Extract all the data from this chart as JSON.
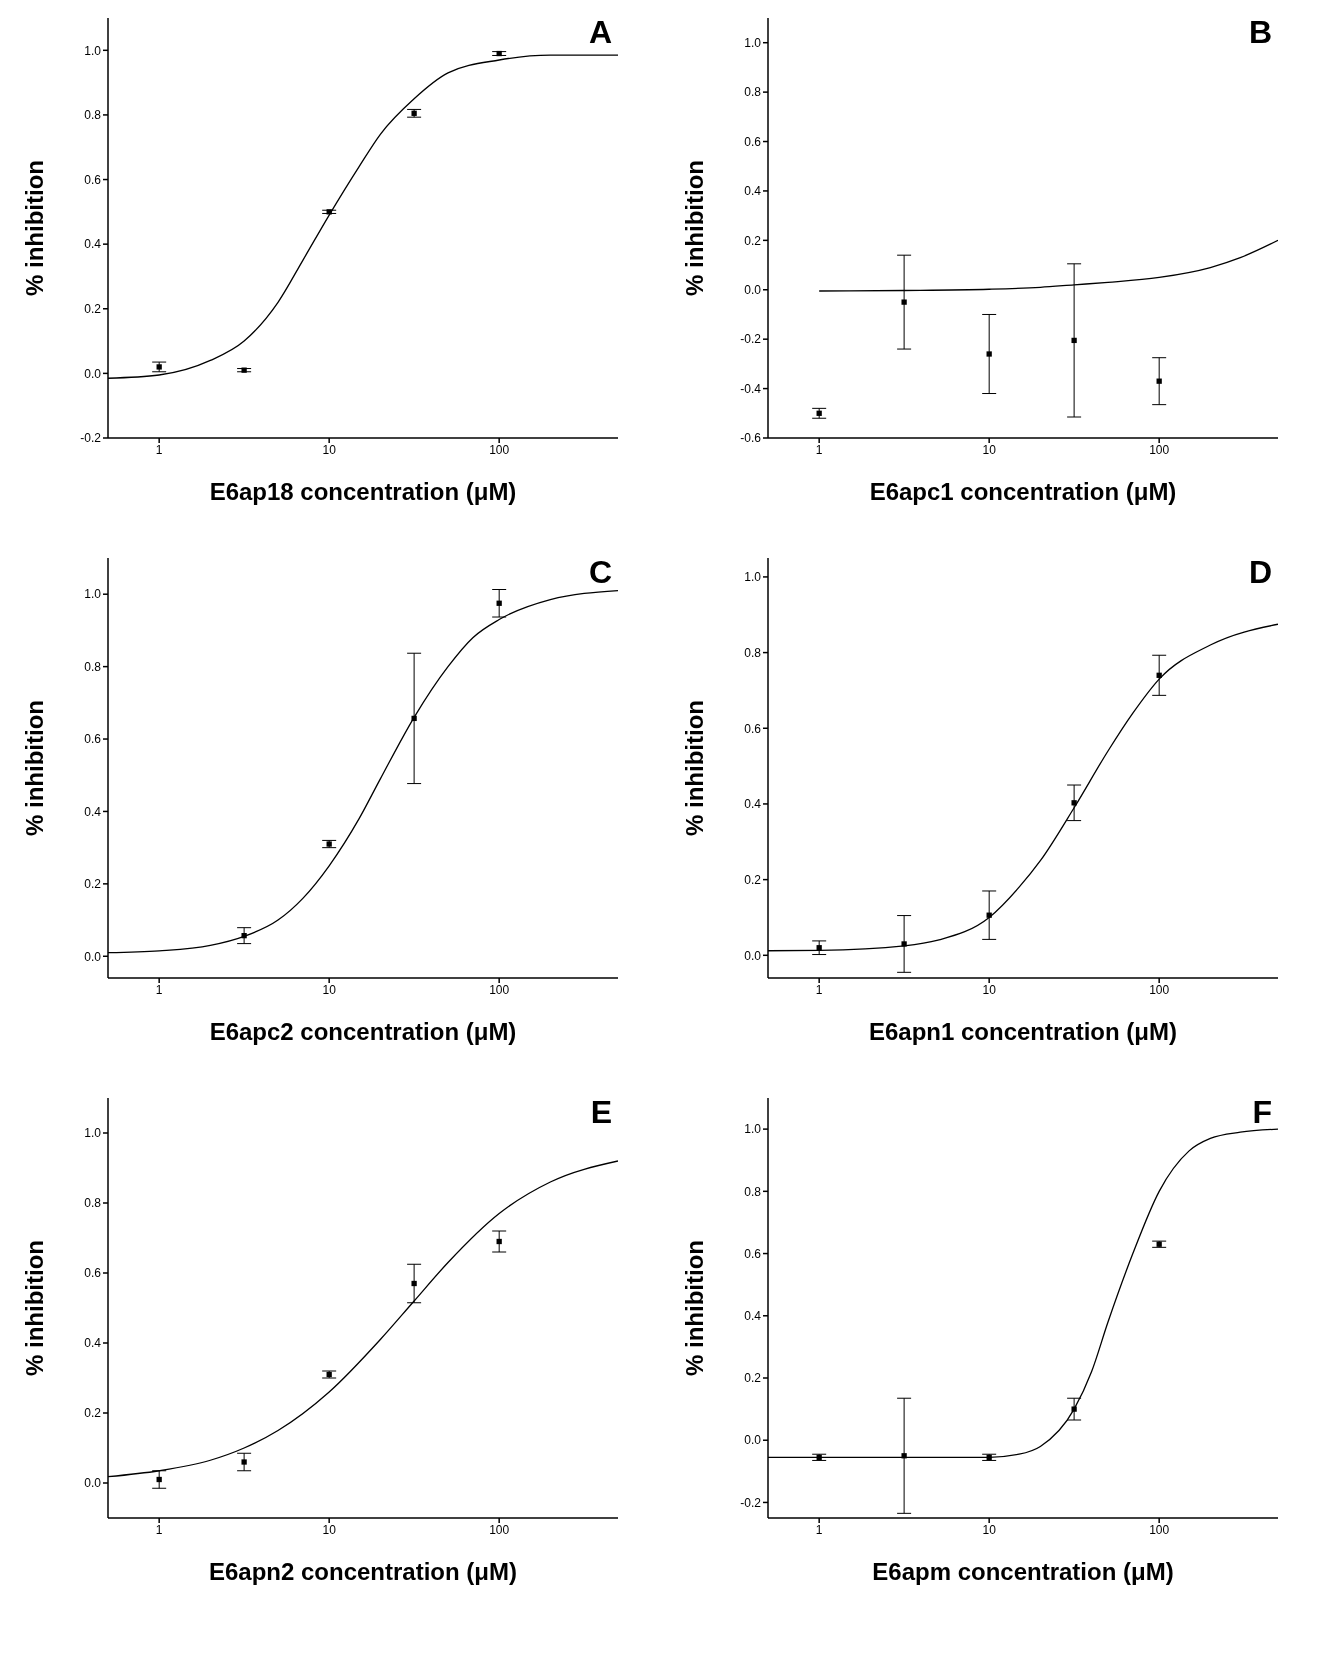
{
  "chart_data": [
    {
      "type": "scatter",
      "xlabel": "E6ap18  concentration (μM)",
      "ylabel": "% inhibition",
      "annotations": [
        "A"
      ],
      "log": "x",
      "xlim": [
        0.5,
        500
      ],
      "xticks": [
        1,
        10,
        100
      ],
      "ylim": [
        -0.2,
        1.1
      ],
      "yticks": [
        {
          "value": -0.2,
          "label": "-0.2"
        },
        {
          "value": 0,
          "label": "0.0"
        },
        {
          "value": 0.2,
          "label": "0.2"
        },
        {
          "value": 0.4,
          "label": "0.4"
        },
        {
          "value": 0.6,
          "label": "0.6"
        },
        {
          "value": 0.8,
          "label": "0.8"
        },
        {
          "value": 1,
          "label": "1.0"
        }
      ],
      "series": [
        {
          "marker": "square",
          "color": "#000000",
          "x": [
            1,
            3.16,
            10,
            31.6,
            100
          ],
          "values": [
            0.02,
            0.01,
            0.5,
            0.805,
            0.99
          ],
          "errors": [
            0.015,
            0.005,
            0.005,
            0.012,
            0.006
          ]
        },
        {
          "type": "line",
          "color": "#000000",
          "x": [
            0.5,
            1,
            2,
            3.16,
            5,
            7,
            10,
            15,
            20,
            31.6,
            50,
            100,
            200,
            500
          ],
          "values": [
            -0.015,
            -0.005,
            0.04,
            0.1,
            0.22,
            0.35,
            0.49,
            0.64,
            0.74,
            0.85,
            0.93,
            0.97,
            0.985,
            0.985
          ]
        }
      ]
    },
    {
      "type": "scatter",
      "xlabel": "E6apc1 concentration (μM)",
      "ylabel": "% inhibition",
      "annotations": [
        "B"
      ],
      "log": "x",
      "xlim": [
        0.5,
        500
      ],
      "xticks": [
        1,
        10,
        100
      ],
      "ylim": [
        -0.6,
        1.1
      ],
      "yticks": [
        {
          "value": -0.6,
          "label": "-0.6"
        },
        {
          "value": -0.4,
          "label": "-0.4"
        },
        {
          "value": -0.2,
          "label": "-0.2"
        },
        {
          "value": 0,
          "label": "0.0"
        },
        {
          "value": 0.2,
          "label": "0.2"
        },
        {
          "value": 0.4,
          "label": "0.4"
        },
        {
          "value": 0.6,
          "label": "0.6"
        },
        {
          "value": 0.8,
          "label": "0.8"
        },
        {
          "value": 1,
          "label": "1.0"
        }
      ],
      "series": [
        {
          "marker": "square",
          "color": "#000000",
          "x": [
            1,
            3.16,
            10,
            31.6,
            100
          ],
          "values": [
            -0.5,
            -0.05,
            -0.26,
            -0.205,
            -0.37
          ],
          "errors": [
            0.02,
            0.19,
            0.16,
            0.31,
            0.095
          ]
        },
        {
          "type": "line",
          "color": "#000000",
          "x": [
            1,
            3.16,
            10,
            20,
            31.6,
            50,
            100,
            200,
            300,
            500
          ],
          "values": [
            -0.005,
            -0.003,
            0.002,
            0.01,
            0.02,
            0.03,
            0.05,
            0.09,
            0.13,
            0.2
          ]
        }
      ]
    },
    {
      "type": "scatter",
      "xlabel": "E6apc2 concentration (μM)",
      "ylabel": "% inhibition",
      "annotations": [
        "C"
      ],
      "log": "x",
      "xlim": [
        0.5,
        500
      ],
      "xticks": [
        1,
        10,
        100
      ],
      "ylim": [
        -0.06,
        1.1
      ],
      "yticks": [
        {
          "value": 0,
          "label": "0.0"
        },
        {
          "value": 0.2,
          "label": "0.2"
        },
        {
          "value": 0.4,
          "label": "0.4"
        },
        {
          "value": 0.6,
          "label": "0.6"
        },
        {
          "value": 0.8,
          "label": "0.8"
        },
        {
          "value": 1,
          "label": "1.0"
        }
      ],
      "series": [
        {
          "marker": "square",
          "color": "#000000",
          "x": [
            3.16,
            10,
            31.6,
            100
          ],
          "values": [
            0.057,
            0.31,
            0.657,
            0.975
          ],
          "errors": [
            0.022,
            0.01,
            0.18,
            0.038
          ]
        },
        {
          "type": "line",
          "color": "#000000",
          "x": [
            0.5,
            1,
            2,
            3.16,
            5,
            7,
            10,
            15,
            20,
            31.6,
            50,
            70,
            100,
            200,
            500
          ],
          "values": [
            0.01,
            0.015,
            0.03,
            0.055,
            0.1,
            0.16,
            0.25,
            0.38,
            0.49,
            0.66,
            0.8,
            0.88,
            0.93,
            0.985,
            1.01
          ]
        }
      ]
    },
    {
      "type": "scatter",
      "xlabel": "E6apn1 concentration (μM)",
      "ylabel": "% inhibition",
      "annotations": [
        "D"
      ],
      "log": "x",
      "xlim": [
        0.5,
        500
      ],
      "xticks": [
        1,
        10,
        100
      ],
      "ylim": [
        -0.06,
        1.05
      ],
      "yticks": [
        {
          "value": 0,
          "label": "0.0"
        },
        {
          "value": 0.2,
          "label": "0.2"
        },
        {
          "value": 0.4,
          "label": "0.4"
        },
        {
          "value": 0.6,
          "label": "0.6"
        },
        {
          "value": 0.8,
          "label": "0.8"
        },
        {
          "value": 1,
          "label": "1.0"
        }
      ],
      "series": [
        {
          "marker": "square",
          "color": "#000000",
          "x": [
            1,
            3.16,
            10,
            31.6,
            100
          ],
          "values": [
            0.02,
            0.03,
            0.106,
            0.403,
            0.74
          ],
          "errors": [
            0.018,
            0.075,
            0.064,
            0.047,
            0.053
          ]
        },
        {
          "type": "line",
          "color": "#000000",
          "x": [
            0.5,
            1,
            3.16,
            5,
            10,
            15,
            20,
            31.6,
            50,
            70,
            100,
            200,
            500
          ],
          "values": [
            0.012,
            0.013,
            0.025,
            0.04,
            0.1,
            0.18,
            0.25,
            0.39,
            0.54,
            0.64,
            0.73,
            0.82,
            0.875
          ]
        }
      ]
    },
    {
      "type": "scatter",
      "xlabel": "E6apn2 concentration (μM)",
      "ylabel": "% inhibition",
      "annotations": [
        "E"
      ],
      "log": "x",
      "xlim": [
        0.5,
        500
      ],
      "xticks": [
        1,
        10,
        100
      ],
      "ylim": [
        -0.1,
        1.1
      ],
      "yticks": [
        {
          "value": 0,
          "label": "0.0"
        },
        {
          "value": 0.2,
          "label": "0.2"
        },
        {
          "value": 0.4,
          "label": "0.4"
        },
        {
          "value": 0.6,
          "label": "0.6"
        },
        {
          "value": 0.8,
          "label": "0.8"
        },
        {
          "value": 1,
          "label": "1.0"
        }
      ],
      "series": [
        {
          "marker": "square",
          "color": "#000000",
          "x": [
            1,
            3.16,
            10,
            31.6,
            100
          ],
          "values": [
            0.01,
            0.06,
            0.31,
            0.57,
            0.69
          ],
          "errors": [
            0.025,
            0.025,
            0.01,
            0.055,
            0.03
          ]
        },
        {
          "type": "line",
          "color": "#000000",
          "x": [
            0.5,
            1,
            2,
            3.16,
            5,
            10,
            20,
            31.6,
            50,
            100,
            200,
            500
          ],
          "values": [
            0.018,
            0.035,
            0.065,
            0.1,
            0.15,
            0.26,
            0.41,
            0.52,
            0.63,
            0.77,
            0.86,
            0.92
          ]
        }
      ]
    },
    {
      "type": "scatter",
      "xlabel": "E6apm concentration (μM)",
      "ylabel": "% inhibition",
      "annotations": [
        "F"
      ],
      "log": "x",
      "xlim": [
        0.5,
        500
      ],
      "xticks": [
        1,
        10,
        100
      ],
      "ylim": [
        -0.25,
        1.1
      ],
      "yticks": [
        {
          "value": -0.2,
          "label": "-0.2"
        },
        {
          "value": 0,
          "label": "0.0"
        },
        {
          "value": 0.2,
          "label": "0.2"
        },
        {
          "value": 0.4,
          "label": "0.4"
        },
        {
          "value": 0.6,
          "label": "0.6"
        },
        {
          "value": 0.8,
          "label": "0.8"
        },
        {
          "value": 1,
          "label": "1.0"
        }
      ],
      "series": [
        {
          "marker": "square",
          "color": "#000000",
          "x": [
            1,
            3.16,
            10,
            31.6,
            100
          ],
          "values": [
            -0.055,
            -0.05,
            -0.055,
            0.1,
            0.63
          ],
          "errors": [
            0.01,
            0.185,
            0.01,
            0.035,
            0.01
          ]
        },
        {
          "type": "line",
          "color": "#000000",
          "x": [
            0.5,
            10,
            15,
            20,
            31.6,
            40,
            50,
            70,
            100,
            150,
            200,
            300,
            500
          ],
          "values": [
            -0.055,
            -0.055,
            -0.045,
            -0.02,
            0.1,
            0.22,
            0.38,
            0.6,
            0.8,
            0.93,
            0.97,
            0.99,
            1.0
          ]
        }
      ]
    }
  ]
}
